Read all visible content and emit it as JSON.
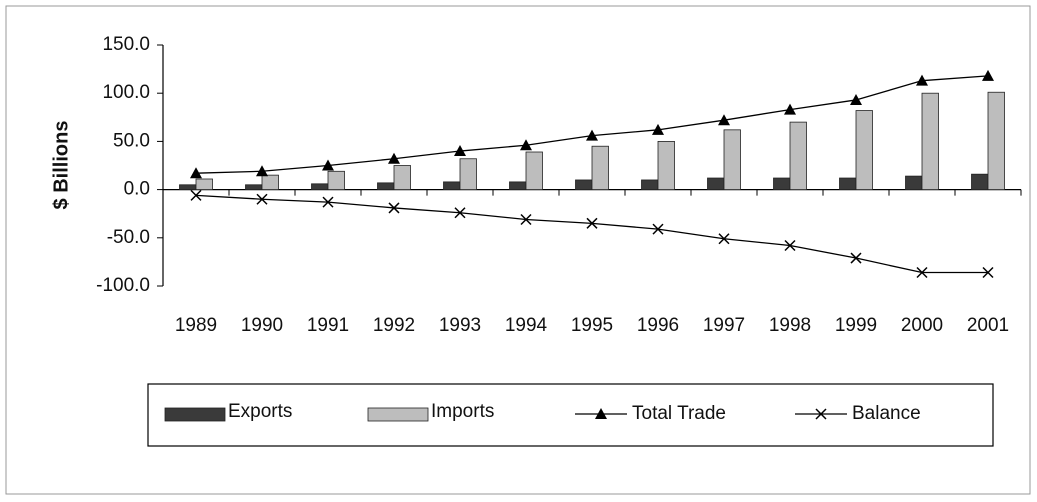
{
  "chart_data": {
    "type": "bar-line",
    "y_label": "$ Billions",
    "categories": [
      "1989",
      "1990",
      "1991",
      "1992",
      "1993",
      "1994",
      "1995",
      "1996",
      "1997",
      "1998",
      "1999",
      "2000",
      "2001"
    ],
    "series": [
      {
        "name": "Exports",
        "type": "bar",
        "color": "#3a3a3a",
        "values": [
          5,
          5,
          6,
          7,
          8,
          8,
          10,
          10,
          12,
          12,
          12,
          14,
          16
        ]
      },
      {
        "name": "Imports",
        "type": "bar",
        "color": "#bdbdbd",
        "values": [
          11,
          15,
          19,
          25,
          32,
          39,
          45,
          50,
          62,
          70,
          82,
          100,
          101
        ]
      },
      {
        "name": "Total Trade",
        "type": "line",
        "marker": "triangle",
        "color": "#000000",
        "values": [
          17,
          19,
          25,
          32,
          40,
          46,
          56,
          62,
          72,
          83,
          93,
          113,
          118
        ]
      },
      {
        "name": "Balance",
        "type": "line",
        "marker": "x",
        "color": "#000000",
        "values": [
          -6,
          -10,
          -13,
          -19,
          -24,
          -31,
          -35,
          -41,
          -51,
          -58,
          -71,
          -86,
          -86
        ]
      }
    ],
    "ylim": [
      -100,
      150
    ],
    "yticks": [
      {
        "value": -100,
        "label": "-100.0"
      },
      {
        "value": -50,
        "label": "-50.0"
      },
      {
        "value": 0,
        "label": "0.0"
      },
      {
        "value": 50,
        "label": "50.0"
      },
      {
        "value": 100,
        "label": "100.0"
      },
      {
        "value": 150,
        "label": "150.0"
      }
    ],
    "grid": false,
    "legend": "bottom"
  }
}
